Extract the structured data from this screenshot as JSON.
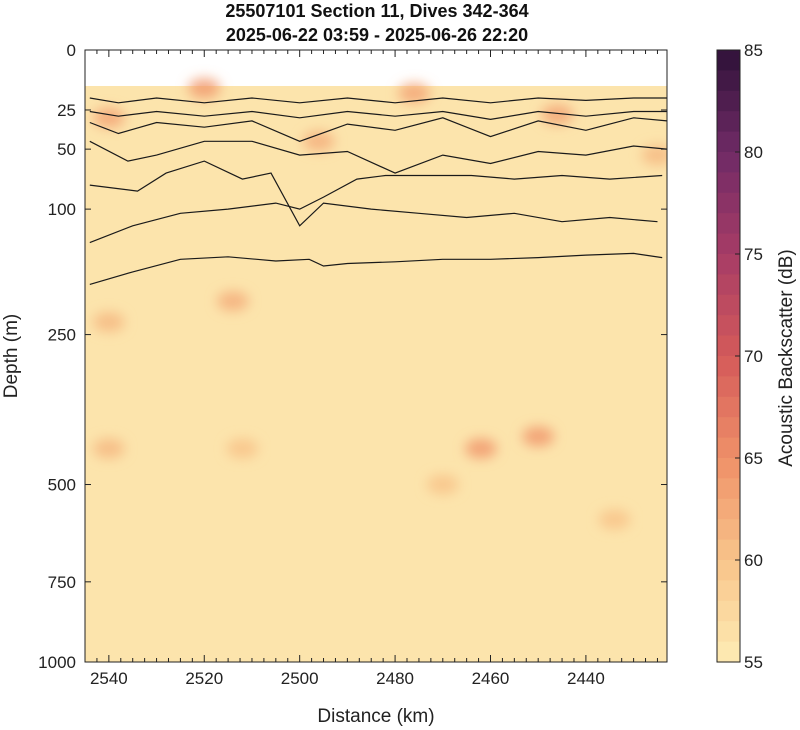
{
  "chart_data": {
    "type": "heatmap",
    "title": "25507101 Section 11, Dives 342-364",
    "subtitle": "2025-06-22 03:59 - 2025-06-26 22:20",
    "xlabel": "Distance (km)",
    "ylabel": "Depth (m)",
    "xlim": [
      2545,
      2423
    ],
    "x_reversed": true,
    "x_ticks": [
      2540,
      2520,
      2500,
      2480,
      2460,
      2440
    ],
    "ylim": [
      0,
      1000
    ],
    "y_scale": "nonlinear (stretched near surface)",
    "y_ticks": [
      0,
      25,
      50,
      100,
      250,
      500,
      750,
      1000
    ],
    "colorbar": {
      "label": "Acoustic Backscatter (dB)",
      "range": [
        55,
        85
      ],
      "ticks": [
        55,
        60,
        65,
        70,
        75,
        80,
        85
      ],
      "colormap": [
        "#fdecb4",
        "#f8c48a",
        "#ef9068",
        "#d45a5a",
        "#a63c66",
        "#6f2a66",
        "#2e1238"
      ]
    },
    "data_top_depth": 15,
    "background_level_db": 56,
    "hotspots": [
      {
        "x": 2520,
        "depth": 16,
        "db": 64
      },
      {
        "x": 2540,
        "depth": 30,
        "db": 63
      },
      {
        "x": 2496,
        "depth": 45,
        "db": 62
      },
      {
        "x": 2476,
        "depth": 18,
        "db": 63
      },
      {
        "x": 2446,
        "depth": 28,
        "db": 63
      },
      {
        "x": 2514,
        "depth": 210,
        "db": 62
      },
      {
        "x": 2540,
        "depth": 235,
        "db": 61
      },
      {
        "x": 2462,
        "depth": 440,
        "db": 64
      },
      {
        "x": 2450,
        "depth": 420,
        "db": 64
      },
      {
        "x": 2540,
        "depth": 440,
        "db": 61
      },
      {
        "x": 2512,
        "depth": 440,
        "db": 60
      },
      {
        "x": 2470,
        "depth": 500,
        "db": 60
      },
      {
        "x": 2434,
        "depth": 590,
        "db": 60
      },
      {
        "x": 2425,
        "depth": 55,
        "db": 61
      }
    ],
    "contours": [
      {
        "x": [
          2544,
          2538,
          2530,
          2520,
          2510,
          2500,
          2490,
          2480,
          2470,
          2460,
          2450,
          2440,
          2430,
          2423
        ],
        "depth": [
          20,
          22,
          20,
          22,
          20,
          22,
          20,
          22,
          20,
          22,
          20,
          21,
          20,
          20
        ]
      },
      {
        "x": [
          2544,
          2538,
          2530,
          2520,
          2510,
          2500,
          2490,
          2480,
          2470,
          2460,
          2450,
          2440,
          2430,
          2423
        ],
        "depth": [
          26,
          29,
          26,
          29,
          26,
          30,
          26,
          29,
          26,
          31,
          26,
          29,
          26,
          26
        ]
      },
      {
        "x": [
          2544,
          2538,
          2530,
          2520,
          2510,
          2500,
          2490,
          2480,
          2470,
          2460,
          2450,
          2440,
          2430,
          2423
        ],
        "depth": [
          33,
          40,
          33,
          36,
          32,
          45,
          34,
          38,
          30,
          42,
          32,
          38,
          30,
          32
        ]
      },
      {
        "x": [
          2544,
          2536,
          2530,
          2520,
          2510,
          2500,
          2490,
          2480,
          2470,
          2460,
          2450,
          2440,
          2430,
          2423
        ],
        "depth": [
          45,
          60,
          55,
          45,
          45,
          55,
          52,
          70,
          55,
          62,
          52,
          55,
          48,
          50
        ]
      },
      {
        "x": [
          2544,
          2534,
          2528,
          2520,
          2512,
          2506,
          2500,
          2495,
          2485,
          2475,
          2465,
          2455,
          2445,
          2435,
          2425
        ],
        "depth": [
          80,
          85,
          70,
          60,
          75,
          70,
          120,
          95,
          100,
          105,
          110,
          105,
          115,
          110,
          115
        ]
      },
      {
        "x": [
          2544,
          2535,
          2525,
          2515,
          2505,
          2500,
          2495,
          2488,
          2482,
          2474,
          2464,
          2455,
          2445,
          2435,
          2424
        ],
        "depth": [
          140,
          120,
          105,
          100,
          95,
          100,
          90,
          75,
          72,
          72,
          72,
          75,
          72,
          75,
          72
        ]
      },
      {
        "x": [
          2544,
          2535,
          2525,
          2515,
          2505,
          2498,
          2495,
          2490,
          2480,
          2470,
          2460,
          2450,
          2440,
          2430,
          2424
        ],
        "depth": [
          190,
          175,
          160,
          157,
          162,
          160,
          168,
          165,
          163,
          160,
          160,
          158,
          155,
          153,
          158
        ]
      }
    ]
  }
}
